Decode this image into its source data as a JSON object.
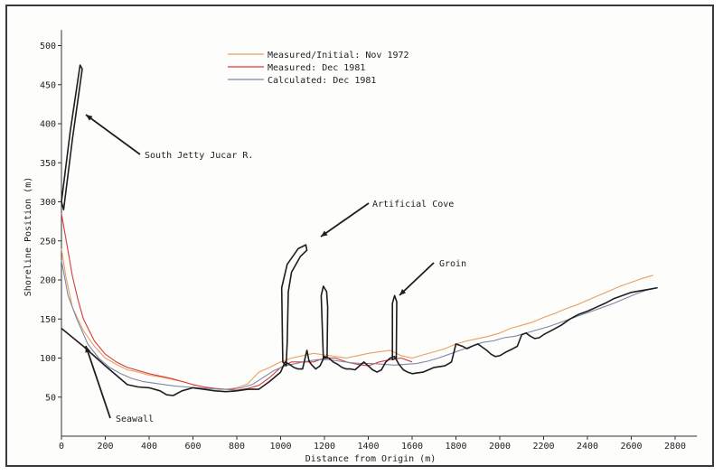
{
  "chart_data": {
    "type": "line",
    "xlabel": "Distance from Origin (m)",
    "ylabel": "Shoreline Position (m)",
    "xlim": [
      0,
      2900
    ],
    "ylim": [
      0,
      520
    ],
    "x_ticks": [
      "0",
      "200",
      "400",
      "600",
      "800",
      "1000",
      "1200",
      "1400",
      "1600",
      "1800",
      "2000",
      "2200",
      "2400",
      "2600",
      "2800"
    ],
    "y_ticks": [
      "50",
      "100",
      "150",
      "200",
      "250",
      "300",
      "350",
      "400",
      "450",
      "500"
    ],
    "grid": false,
    "legend": [
      {
        "label": "Measured/Initial:  Nov 1972",
        "color": "#e8a060"
      },
      {
        "label": "Measured:  Dec 1981",
        "color": "#d83a3a"
      },
      {
        "label": "Calculated:  Dec 1981",
        "color": "#7c88a8"
      }
    ],
    "series": [
      {
        "name": "Measured/Initial:  Nov 1972",
        "color": "#e8a060",
        "x": [
          0,
          20,
          50,
          100,
          150,
          200,
          250,
          300,
          350,
          400,
          450,
          500,
          550,
          600,
          650,
          700,
          750,
          800,
          850,
          900,
          950,
          1000,
          1050,
          1100,
          1150,
          1200,
          1250,
          1300,
          1350,
          1400,
          1450,
          1500,
          1550,
          1600,
          1650,
          1700,
          1750,
          1800,
          1850,
          1900,
          1950,
          2000,
          2050,
          2100,
          2150,
          2200,
          2250,
          2300,
          2350,
          2400,
          2450,
          2500,
          2550,
          2600,
          2650,
          2700
        ],
        "y": [
          240,
          205,
          165,
          135,
          115,
          100,
          92,
          85,
          82,
          78,
          76,
          73,
          70,
          66,
          63,
          61,
          60,
          62,
          67,
          82,
          88,
          95,
          100,
          103,
          106,
          104,
          102,
          100,
          103,
          106,
          108,
          110,
          103,
          100,
          104,
          108,
          112,
          118,
          122,
          125,
          128,
          132,
          138,
          142,
          146,
          152,
          157,
          163,
          168,
          174,
          180,
          186,
          192,
          197,
          202,
          206
        ]
      },
      {
        "name": "Measured:  Dec 1981",
        "color": "#d83a3a",
        "x": [
          0,
          25,
          50,
          75,
          100,
          150,
          200,
          250,
          300,
          350,
          400,
          450,
          500,
          550,
          600,
          650,
          700,
          750,
          800,
          850,
          900,
          950,
          1000,
          1050,
          1100,
          1150,
          1200,
          1250,
          1300,
          1350,
          1400,
          1450,
          1500,
          1550,
          1600
        ],
        "y": [
          285,
          245,
          205,
          175,
          150,
          122,
          105,
          95,
          88,
          84,
          80,
          77,
          74,
          70,
          66,
          63,
          61,
          60,
          59,
          61,
          65,
          75,
          88,
          95,
          95,
          95,
          100,
          100,
          95,
          92,
          90,
          95,
          98,
          100,
          95
        ]
      },
      {
        "name": "Calculated:  Dec 1981",
        "color": "#7c88a8",
        "x": [
          0,
          30,
          70,
          120,
          170,
          220,
          270,
          320,
          370,
          420,
          470,
          520,
          570,
          620,
          670,
          720,
          770,
          820,
          870,
          920,
          970,
          1020,
          1070,
          1120,
          1170,
          1220,
          1270,
          1320,
          1370,
          1420,
          1470,
          1520,
          1570,
          1620,
          1670,
          1720,
          1770,
          1820,
          1870,
          1920,
          1970,
          2020,
          2070,
          2120,
          2170,
          2220,
          2270,
          2320,
          2370,
          2420,
          2470,
          2520,
          2570,
          2620,
          2670,
          2720
        ],
        "y": [
          225,
          180,
          150,
          118,
          100,
          88,
          80,
          74,
          70,
          68,
          66,
          64,
          63,
          62,
          61,
          60,
          60,
          62,
          66,
          75,
          84,
          90,
          93,
          96,
          98,
          98,
          96,
          94,
          93,
          93,
          92,
          91,
          92,
          93,
          96,
          100,
          105,
          110,
          115,
          120,
          122,
          126,
          128,
          132,
          136,
          140,
          145,
          150,
          155,
          160,
          165,
          170,
          176,
          182,
          187,
          190
        ]
      },
      {
        "name": "",
        "color": "#1e1e1e",
        "x": [
          0,
          100,
          200,
          300,
          350,
          400,
          450,
          480,
          510,
          550,
          600,
          650,
          700,
          750,
          800,
          850,
          900,
          950,
          1000,
          1020,
          1040,
          1060,
          1080,
          1100,
          1120,
          1130,
          1140,
          1160,
          1180,
          1200,
          1220,
          1240,
          1260,
          1280,
          1300,
          1320,
          1340,
          1360,
          1380,
          1400,
          1420,
          1440,
          1460,
          1480,
          1500,
          1520,
          1540,
          1560,
          1580,
          1600,
          1650,
          1700,
          1750,
          1780,
          1800,
          1830,
          1850,
          1880,
          1900,
          1920,
          1940,
          1960,
          1980,
          2000,
          2030,
          2060,
          2080,
          2100,
          2120,
          2140,
          2160,
          2180,
          2200,
          2240,
          2280,
          2320,
          2360,
          2400,
          2440,
          2480,
          2520,
          2560,
          2600,
          2640,
          2680,
          2720
        ],
        "y": [
          138,
          115,
          90,
          66,
          63,
          62,
          58,
          53,
          52,
          58,
          62,
          60,
          58,
          57,
          58,
          60,
          60,
          70,
          82,
          95,
          92,
          88,
          86,
          86,
          110,
          96,
          92,
          86,
          90,
          102,
          100,
          95,
          92,
          88,
          86,
          86,
          85,
          90,
          95,
          90,
          85,
          82,
          85,
          95,
          100,
          102,
          92,
          85,
          82,
          80,
          82,
          88,
          90,
          95,
          118,
          115,
          112,
          116,
          118,
          114,
          110,
          105,
          102,
          103,
          108,
          112,
          115,
          130,
          132,
          128,
          125,
          126,
          130,
          136,
          142,
          150,
          156,
          160,
          165,
          170,
          176,
          180,
          184,
          186,
          188,
          190
        ]
      }
    ],
    "annotations": [
      {
        "text": "South Jetty Jucar R."
      },
      {
        "text": "Artificial Cove"
      },
      {
        "text": "Groin"
      },
      {
        "text": "Seawall"
      }
    ]
  }
}
